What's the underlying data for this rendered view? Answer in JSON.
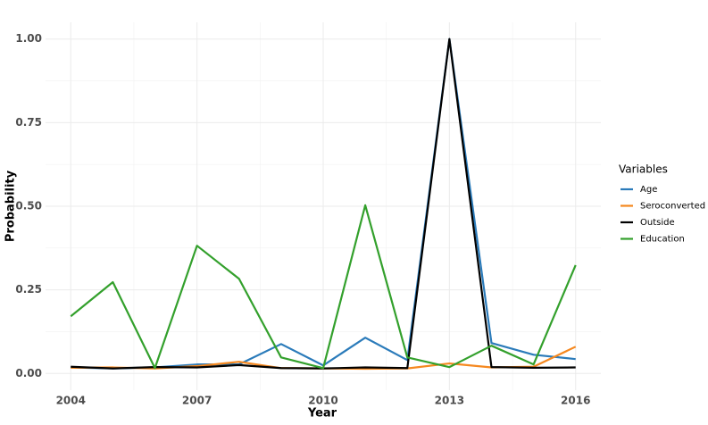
{
  "chart_data": {
    "type": "line",
    "x_label": "Year",
    "y_label": "Probability",
    "x": [
      2004,
      2005,
      2006,
      2007,
      2008,
      2009,
      2010,
      2011,
      2012,
      2013,
      2014,
      2015,
      2016
    ],
    "series": [
      {
        "name": "Age",
        "color": "#2b7bba",
        "values": [
          0.018,
          0.015,
          0.018,
          0.027,
          0.027,
          0.088,
          0.024,
          0.107,
          0.04,
          1.0,
          0.091,
          0.056,
          0.043
        ]
      },
      {
        "name": "Seroconverted",
        "color": "#f5881f",
        "values": [
          0.017,
          0.018,
          0.015,
          0.022,
          0.035,
          0.016,
          0.015,
          0.014,
          0.015,
          0.03,
          0.018,
          0.02,
          0.08
        ]
      },
      {
        "name": "Outside",
        "color": "#000000",
        "values": [
          0.02,
          0.015,
          0.019,
          0.018,
          0.025,
          0.016,
          0.015,
          0.018,
          0.016,
          1.0,
          0.019,
          0.017,
          0.018
        ]
      },
      {
        "name": "Education",
        "color": "#33a02c",
        "values": [
          0.171,
          0.273,
          0.016,
          0.382,
          0.283,
          0.048,
          0.016,
          0.503,
          0.048,
          0.019,
          0.083,
          0.027,
          0.324
        ]
      }
    ],
    "xlim": [
      2003.4,
      2016.6
    ],
    "xticks": [
      2004,
      2007,
      2010,
      2013,
      2016
    ],
    "ylim": [
      -0.05,
      1.05
    ],
    "yticks": [
      {
        "value": 0,
        "label": "0.00"
      },
      0.25,
      {
        "value": 0.5,
        "label": "0.50"
      },
      0.75,
      {
        "value": 1,
        "label": "1.00"
      }
    ],
    "grid": true,
    "legend_title": "Variables",
    "legend_position": "right"
  }
}
